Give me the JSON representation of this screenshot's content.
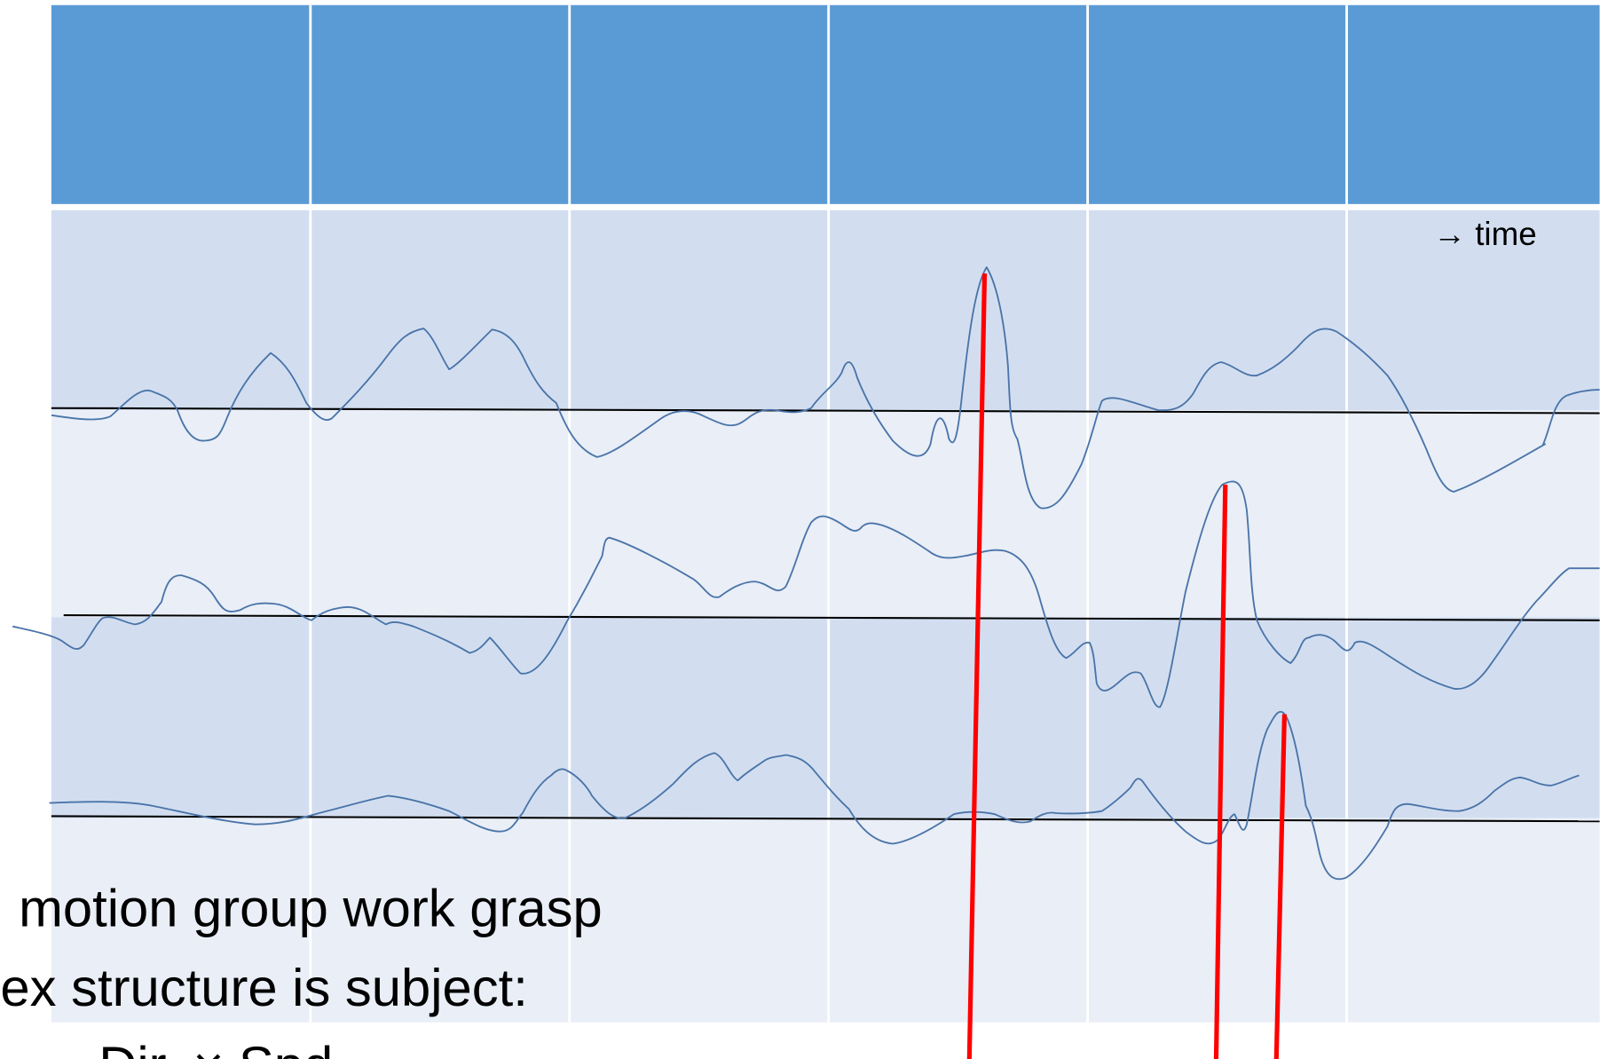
{
  "time_label": "→  time",
  "text_lines": [
    "motion group work grasp",
    "ex structure is subject:",
    "→ Dir. × Spd"
  ]
}
